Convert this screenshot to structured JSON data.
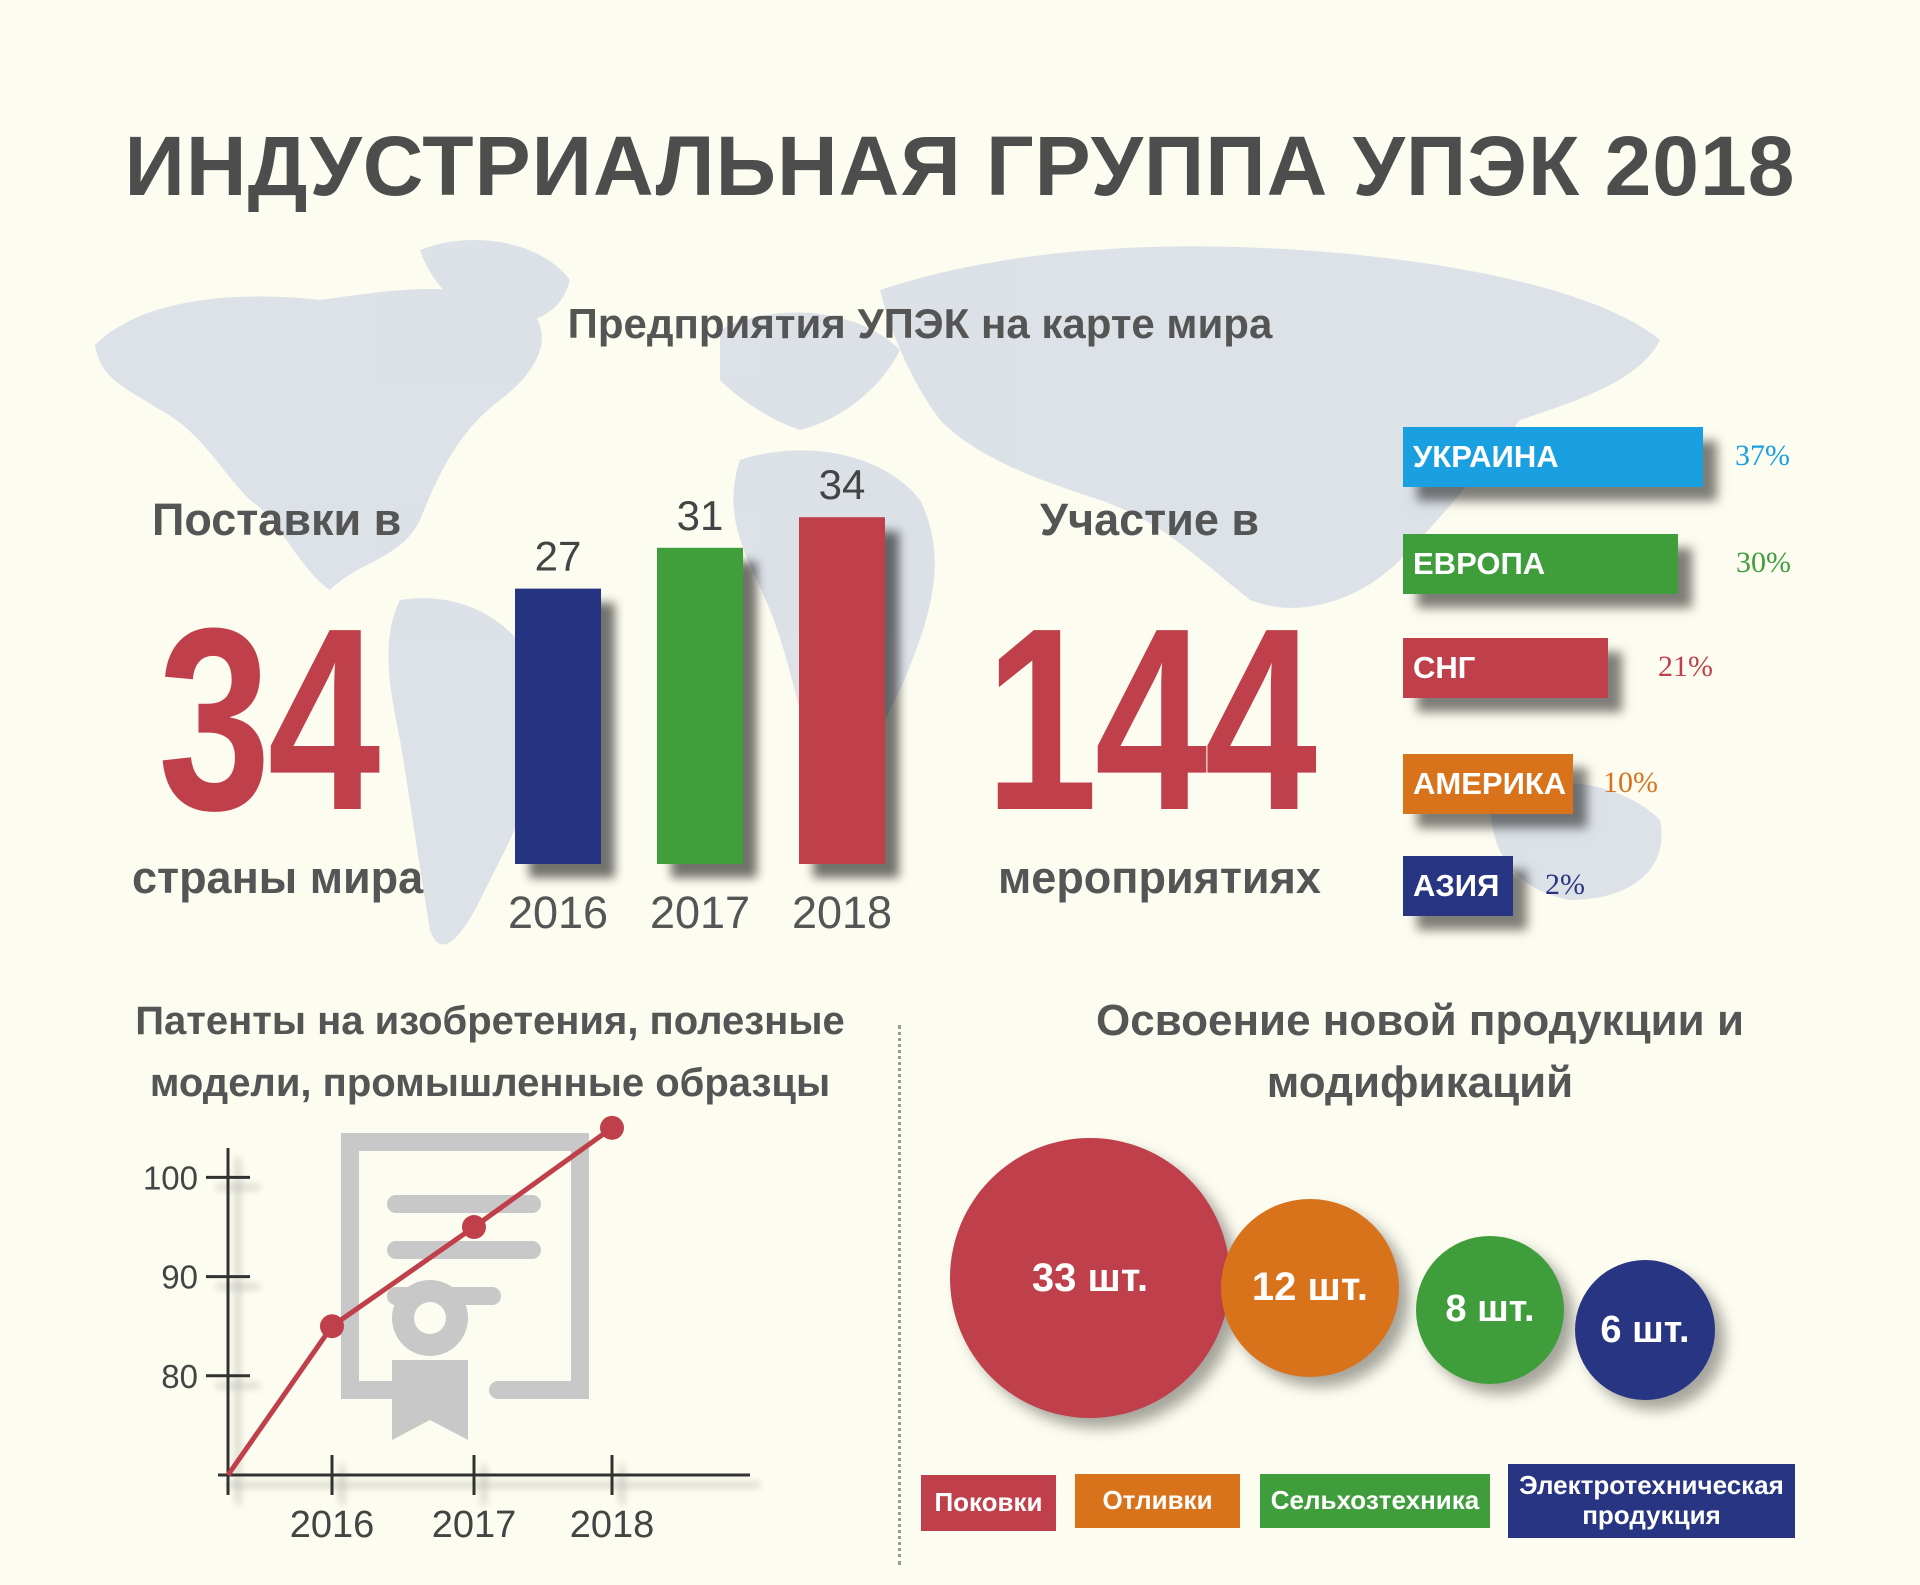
{
  "title": "ИНДУСТРИАЛЬНАЯ ГРУППА УПЭК 2018",
  "map_title": "Предприятия УПЭК на карте мира",
  "deliveries": {
    "label_top": "Поставки в",
    "number": "34",
    "label_bottom": "страны мира"
  },
  "events": {
    "label_top": "Участие в",
    "number": "144",
    "label_bottom": "мероприятиях"
  },
  "chart_data": [
    {
      "type": "bar",
      "categories": [
        "2016",
        "2017",
        "2018"
      ],
      "values": [
        27,
        31,
        34
      ],
      "colors": [
        "#283582",
        "#3f9e3b",
        "#bf404a"
      ]
    },
    {
      "type": "bar",
      "orientation": "horizontal",
      "categories": [
        "УКРАИНА",
        "ЕВРОПА",
        "СНГ",
        "АМЕРИКА",
        "АЗИЯ"
      ],
      "values": [
        37,
        30,
        21,
        10,
        2
      ],
      "labels": [
        "37%",
        "30%",
        "21%",
        "10%",
        "2%"
      ],
      "colors": [
        "#1aa0e0",
        "#3f9e3b",
        "#bf404a",
        "#d8721b",
        "#283582"
      ]
    },
    {
      "type": "line",
      "title": "Патенты на изобретения, полезные модели, промышленные образцы",
      "x": [
        "2016",
        "2017",
        "2018"
      ],
      "y": [
        85,
        95,
        105
      ],
      "yticks": [
        "80",
        "90",
        "100"
      ],
      "ylim": [
        70,
        107
      ],
      "color": "#bf404a"
    },
    {
      "type": "bubble",
      "title": "Освоение новой продукции и модификаций",
      "categories": [
        "Поковки",
        "Отливки",
        "Сельхозтехника",
        "Электротехническая продукция"
      ],
      "values": [
        33,
        12,
        8,
        6
      ],
      "labels": [
        "33 шт.",
        "12 шт.",
        "8 шт.",
        "6 шт."
      ],
      "colors": [
        "#bf404a",
        "#d8721b",
        "#3f9e3b",
        "#283582"
      ]
    }
  ]
}
